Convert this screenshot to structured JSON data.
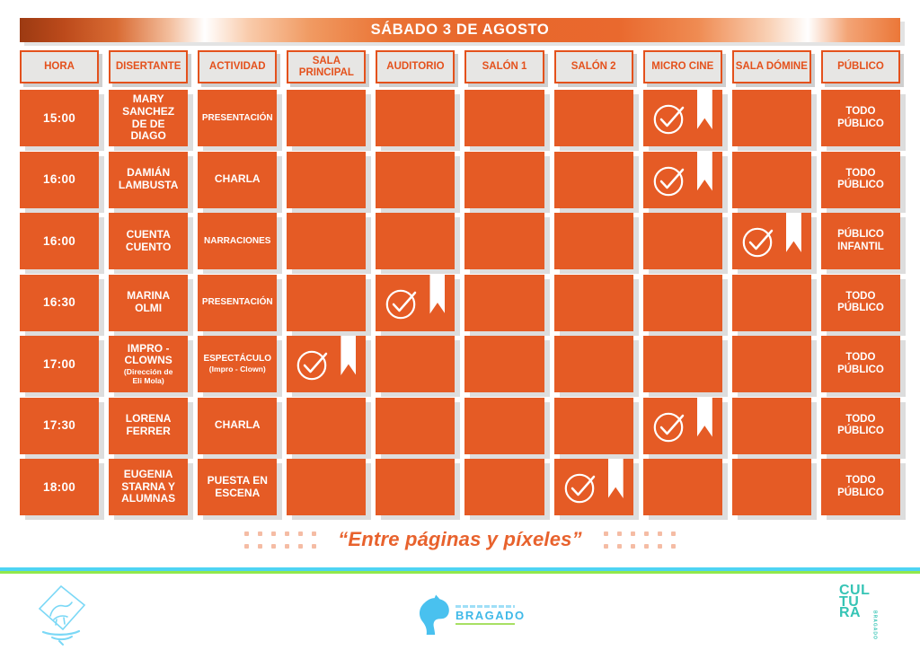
{
  "title": "SÁBADO 3 DE AGOSTO",
  "columns": [
    {
      "label": "HORA"
    },
    {
      "label": "DISERTANTE"
    },
    {
      "label": "ACTIVIDAD"
    },
    {
      "label": "SALA PRINCIPAL"
    },
    {
      "label": "AUDITORIO"
    },
    {
      "label": "SALÓN 1"
    },
    {
      "label": "SALÓN 2"
    },
    {
      "label": "MICRO CINE"
    },
    {
      "label": "SALA DÓMINE"
    },
    {
      "label": "PÚBLICO"
    }
  ],
  "room_columns": [
    "SALA PRINCIPAL",
    "AUDITORIO",
    "SALÓN 1",
    "SALÓN 2",
    "MICRO CINE",
    "SALA DÓMINE"
  ],
  "schedule": [
    {
      "hora": "15:00",
      "disertante": "MARY\nSANCHEZ\nDE DE\nDIAGO",
      "disertante_note": "",
      "actividad": "PRESENTACIÓN",
      "actividad_note": "",
      "marked_room": "MICRO CINE",
      "publico": "TODO\nPÚBLICO"
    },
    {
      "hora": "16:00",
      "disertante": "DAMIÁN\nLAMBUSTA",
      "disertante_note": "",
      "actividad": "CHARLA",
      "actividad_note": "",
      "marked_room": "MICRO CINE",
      "publico": "TODO\nPÚBLICO"
    },
    {
      "hora": "16:00",
      "disertante": "CUENTA\nCUENTO",
      "disertante_note": "",
      "actividad": "NARRACIONES",
      "actividad_note": "",
      "marked_room": "SALA DÓMINE",
      "publico": "PÚBLICO\nINFANTIL"
    },
    {
      "hora": "16:30",
      "disertante": "MARINA\nOLMI",
      "disertante_note": "",
      "actividad": "PRESENTACIÓN",
      "actividad_note": "",
      "marked_room": "AUDITORIO",
      "publico": "TODO\nPÚBLICO"
    },
    {
      "hora": "17:00",
      "disertante": "IMPRO -\nCLOWNS",
      "disertante_note": "(Dirección de\nEli Mola)",
      "actividad": "ESPECTÁCULO",
      "actividad_note": "(Impro - Clown)",
      "marked_room": "SALA PRINCIPAL",
      "publico": "TODO\nPÚBLICO"
    },
    {
      "hora": "17:30",
      "disertante": "LORENA\nFERRER",
      "disertante_note": "",
      "actividad": "CHARLA",
      "actividad_note": "",
      "marked_room": "MICRO CINE",
      "publico": "TODO\nPÚBLICO"
    },
    {
      "hora": "18:00",
      "disertante": "EUGENIA\nSTARNA Y\nALUMNAS",
      "disertante_note": "",
      "actividad": "PUESTA EN\nESCENA",
      "actividad_note": "",
      "marked_room": "SALÓN 2",
      "publico": "TODO\nPÚBLICO"
    }
  ],
  "footer": {
    "quote": "“Entre páginas y píxeles”"
  },
  "logos": {
    "bragado_wordmark": "BRAGADO",
    "cultura_lines": [
      "CUL",
      "TU",
      "RA"
    ],
    "cultura_vertical": "BRAGADO"
  },
  "icons": {
    "marked_cell": [
      "check-circle-icon",
      "bookmark-ribbon-icon"
    ]
  },
  "colors": {
    "cell_orange": "#E55B25",
    "header_accent": "#E4511C",
    "quote_orange": "#E8622D",
    "divider_cyan": "#4ED4F4",
    "divider_green": "#92E84C",
    "logo_blue": "#4FC4F0",
    "logo_teal": "#35C4B5"
  }
}
